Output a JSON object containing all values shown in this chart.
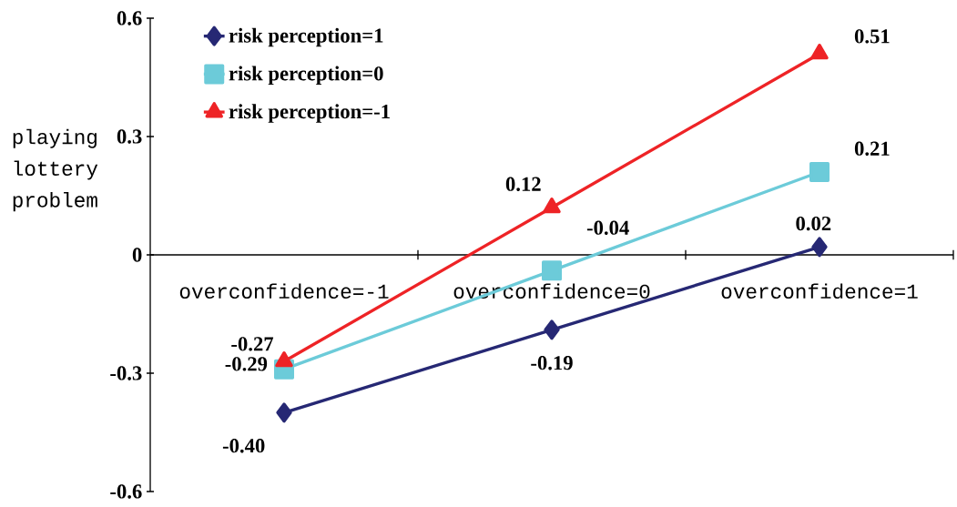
{
  "chart_data": {
    "type": "line",
    "ylabel": "playing lottery problem",
    "categories": [
      "overconfidence=-1",
      "overconfidence=0",
      "overconfidence=1"
    ],
    "series": [
      {
        "name": "risk perception=1",
        "color": "#262874",
        "marker": "diamond",
        "values": [
          -0.4,
          -0.19,
          0.02
        ],
        "value_labels": [
          "-0.40",
          "-0.19",
          "0.02"
        ]
      },
      {
        "name": "risk perception=0",
        "color": "#6ccbd9",
        "marker": "square",
        "values": [
          -0.29,
          -0.04,
          0.21
        ],
        "value_labels": [
          "-0.29",
          "-0.04",
          "0.21"
        ]
      },
      {
        "name": "risk perception=-1",
        "color": "#ee2326",
        "marker": "triangle",
        "values": [
          -0.27,
          0.12,
          0.51
        ],
        "value_labels": [
          "-0.27",
          "0.12",
          "0.51"
        ]
      }
    ],
    "ylim": [
      -0.6,
      0.6
    ],
    "yticks": [
      -0.6,
      -0.3,
      0,
      0.3,
      0.6
    ],
    "grid": false,
    "legend": "top left",
    "line_style": "solid"
  }
}
